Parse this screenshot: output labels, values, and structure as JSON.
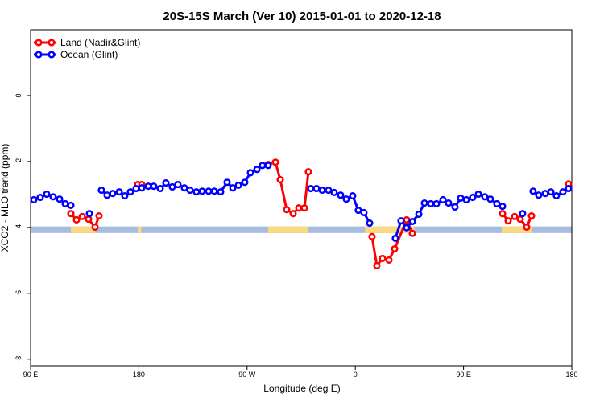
{
  "chart_data": {
    "type": "line",
    "title": "20S-15S March (Ver 10)   2015-01-01 to 2020-12-18",
    "x_label": "Longitude (deg E)",
    "y_label": "XCO2 - MLO trend (ppm)",
    "xlim": [
      90,
      540
    ],
    "xticks": [
      {
        "value": 90,
        "label": "90 E"
      },
      180,
      {
        "value": 270,
        "label": "90 W"
      },
      {
        "value": 360,
        "label": "0"
      },
      {
        "value": 450,
        "label": "90 E"
      },
      {
        "value": 540,
        "label": "180"
      }
    ],
    "ylim": [
      -8.2,
      2
    ],
    "yticks": [
      0,
      -2,
      -4,
      -6,
      -8
    ],
    "legend": "top-left",
    "surface_band": {
      "ylim": [
        -4.17,
        -3.97
      ],
      "ocean_color": "#a6bddf",
      "land_color": "#fbd97e",
      "land_ranges": [
        [
          123.5,
          143.6
        ],
        [
          179,
          182
        ],
        [
          287.5,
          321
        ],
        [
          368,
          409
        ],
        [
          481.7,
          506.5
        ]
      ]
    },
    "series": [
      {
        "name": "Land (Nadir&Glint)",
        "color": "#ff0000",
        "x": [
          123.5,
          128.2,
          132.9,
          138.2,
          143.6,
          146.9,
          null,
          179.1,
          182.4,
          null,
          287.5,
          293.6,
          297.6,
          302.9,
          308.3,
          313.0,
          317.7,
          321.0,
          null,
          373.9,
          377.9,
          382.6,
          388.0,
          392.7,
          402.7,
          407.4,
          null,
          482.4,
          487.1,
          492.5,
          497.1,
          502.5,
          506.5,
          null,
          537.3
        ],
        "values": [
          -3.58,
          -3.77,
          -3.67,
          -3.75,
          -3.99,
          -3.65,
          null,
          -2.7,
          -2.7,
          null,
          -2.09,
          -2.02,
          -2.55,
          -3.46,
          -3.58,
          -3.41,
          -3.41,
          -2.31,
          null,
          -4.28,
          -5.16,
          -4.94,
          -4.99,
          -4.65,
          -3.77,
          -4.18,
          null,
          -3.58,
          -3.8,
          -3.67,
          -3.75,
          -3.99,
          -3.65,
          null,
          -2.68
        ]
      },
      {
        "name": "Ocean (Glint)",
        "color": "#0000ff",
        "x": [
          92.7,
          98.0,
          103.4,
          108.7,
          114.1,
          118.8,
          123.5,
          null,
          138.9,
          null,
          148.9,
          153.6,
          158.3,
          163.7,
          168.3,
          173.0,
          177.7,
          182.4,
          187.8,
          192.4,
          197.8,
          202.5,
          207.8,
          212.5,
          217.9,
          222.6,
          227.9,
          232.6,
          238.0,
          242.7,
          248.0,
          253.4,
          258.1,
          262.8,
          268.1,
          272.8,
          278.2,
          282.8,
          287.5,
          null,
          323.0,
          327.7,
          332.4,
          337.7,
          342.4,
          347.8,
          352.5,
          357.8,
          362.5,
          367.2,
          371.9,
          null,
          393.3,
          398.0,
          402.7,
          407.4,
          412.8,
          417.5,
          422.8,
          427.5,
          432.9,
          437.5,
          442.9,
          447.6,
          452.3,
          457.6,
          462.3,
          467.7,
          472.3,
          477.7,
          482.4,
          null,
          499.1,
          null,
          507.8,
          512.5,
          517.9,
          522.6,
          527.2,
          532.6,
          537.3
        ],
        "values": [
          -3.16,
          -3.09,
          -2.99,
          -3.07,
          -3.14,
          -3.28,
          -3.33,
          null,
          -3.58,
          null,
          -2.87,
          -3.02,
          -2.97,
          -2.92,
          -3.04,
          -2.92,
          -2.82,
          -2.8,
          -2.75,
          -2.75,
          -2.82,
          -2.65,
          -2.77,
          -2.7,
          -2.8,
          -2.87,
          -2.92,
          -2.9,
          -2.9,
          -2.9,
          -2.92,
          -2.63,
          -2.8,
          -2.72,
          -2.63,
          -2.34,
          -2.24,
          -2.12,
          -2.12,
          null,
          -2.82,
          -2.82,
          -2.87,
          -2.87,
          -2.94,
          -3.02,
          -3.14,
          -3.04,
          -3.48,
          -3.55,
          -3.87,
          null,
          -4.33,
          -3.8,
          -4.01,
          -3.82,
          -3.6,
          -3.26,
          -3.28,
          -3.28,
          -3.16,
          -3.26,
          -3.38,
          -3.11,
          -3.16,
          -3.09,
          -2.99,
          -3.07,
          -3.14,
          -3.28,
          -3.36,
          null,
          -3.58,
          null,
          -2.9,
          -3.02,
          -2.97,
          -2.92,
          -3.04,
          -2.92,
          -2.82
        ]
      }
    ]
  }
}
